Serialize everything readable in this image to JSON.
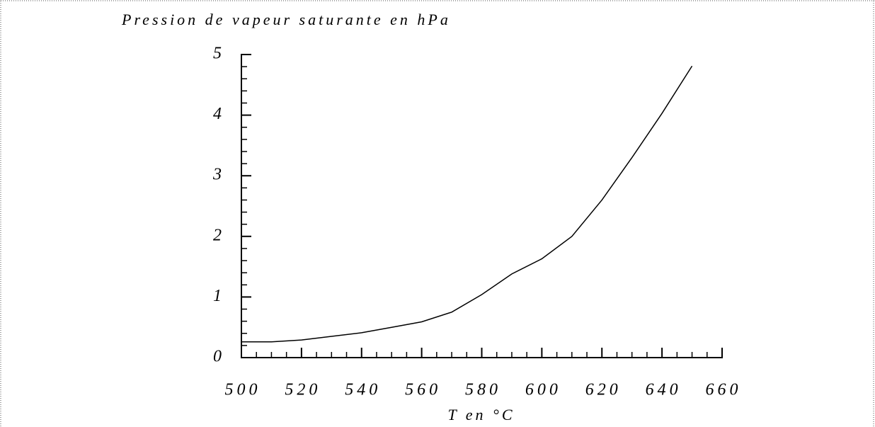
{
  "chart_data": {
    "type": "line",
    "title": "Pression de vapeur saturante en hPa",
    "x_label": "T en °C",
    "x": [
      500,
      510,
      520,
      530,
      540,
      550,
      560,
      570,
      580,
      590,
      600,
      610,
      620,
      630,
      640,
      650
    ],
    "series": [
      {
        "name": null,
        "color": "#000000",
        "values": [
          0.26,
          0.26,
          0.29,
          0.35,
          0.41,
          0.5,
          0.59,
          0.75,
          1.04,
          1.38,
          1.63,
          2.0,
          2.6,
          3.3,
          4.03,
          4.81
        ]
      }
    ],
    "xlim": [
      500,
      660
    ],
    "xticks": [
      500,
      520,
      540,
      560,
      580,
      600,
      620,
      640,
      660
    ],
    "xminorticks": [
      505,
      510,
      515,
      525,
      530,
      535,
      545,
      550,
      555,
      565,
      570,
      575,
      585,
      590,
      595,
      605,
      610,
      615,
      625,
      630,
      635,
      645,
      650,
      655
    ],
    "ylim": [
      0,
      5
    ],
    "yticks": [
      0,
      1,
      2,
      3,
      4,
      5
    ],
    "yminorticks": [
      0.2,
      0.4,
      0.6,
      0.8,
      1.2,
      1.4,
      1.6,
      1.8,
      2.2,
      2.4,
      2.6,
      2.8,
      3.2,
      3.4,
      3.6,
      3.8,
      4.2,
      4.4,
      4.6,
      4.8
    ],
    "grid": false
  }
}
